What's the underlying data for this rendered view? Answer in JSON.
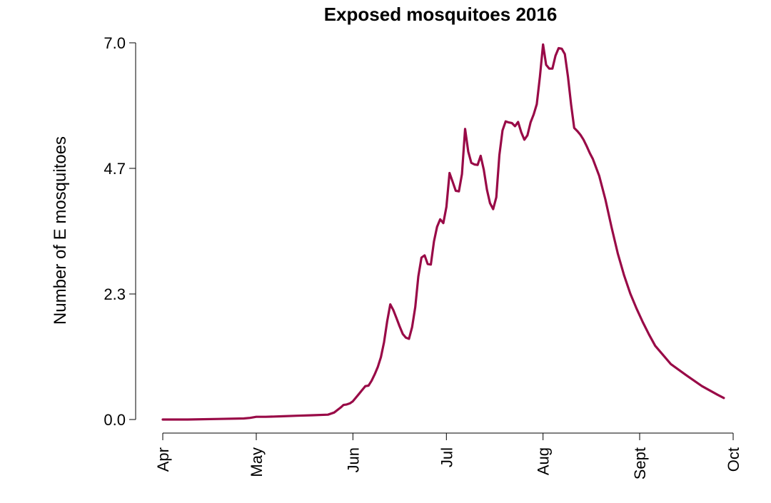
{
  "chart_data": {
    "type": "line",
    "title": "Exposed mosquitoes 2016",
    "xlabel": "",
    "ylabel": "Number of E mosquitoes",
    "x_unit": "day of year 2016",
    "xlim": [
      92,
      275
    ],
    "ylim": [
      0,
      7.0
    ],
    "yticks": [
      {
        "value": 0,
        "label": "0.0"
      },
      {
        "value": 2.333,
        "label": "2.3"
      },
      {
        "value": 4.667,
        "label": "4.7"
      },
      {
        "value": 7.0,
        "label": "7.0"
      }
    ],
    "xticks": [
      {
        "value": 92,
        "label": "Apr"
      },
      {
        "value": 122,
        "label": "May"
      },
      {
        "value": 153,
        "label": "Jun"
      },
      {
        "value": 183,
        "label": "Jul"
      },
      {
        "value": 214,
        "label": "Aug"
      },
      {
        "value": 245,
        "label": "Sept"
      },
      {
        "value": 275,
        "label": "Oct"
      }
    ],
    "grid": false,
    "series": [
      {
        "name": "Exposed mosquitoes",
        "color": "#990a47",
        "x": [
          92,
          100,
          110,
          118,
          120,
          122,
          125,
          130,
          135,
          140,
          145,
          147,
          149,
          150,
          151,
          152,
          153,
          154,
          155,
          156,
          157,
          158,
          159,
          160,
          161,
          162,
          163,
          164,
          165,
          166,
          167,
          168,
          169,
          170,
          171,
          172,
          173,
          174,
          175,
          176,
          177,
          178,
          179,
          180,
          181,
          182,
          183,
          184,
          185,
          186,
          187,
          188,
          189,
          190,
          191,
          192,
          193,
          194,
          195,
          196,
          197,
          198,
          199,
          200,
          201,
          202,
          203,
          204,
          205,
          206,
          207,
          208,
          209,
          210,
          211,
          212,
          213,
          214,
          215,
          216,
          217,
          218,
          219,
          220,
          221,
          222,
          223,
          224,
          225,
          226,
          227,
          228,
          229,
          230,
          232,
          234,
          236,
          238,
          240,
          242,
          244,
          246,
          248,
          250,
          255,
          260,
          265,
          270,
          272
        ],
        "values": [
          0.0,
          0.0,
          0.01,
          0.02,
          0.03,
          0.05,
          0.05,
          0.06,
          0.07,
          0.08,
          0.09,
          0.13,
          0.22,
          0.27,
          0.28,
          0.3,
          0.34,
          0.41,
          0.48,
          0.55,
          0.62,
          0.63,
          0.72,
          0.84,
          0.98,
          1.16,
          1.44,
          1.83,
          2.14,
          2.03,
          1.88,
          1.73,
          1.59,
          1.52,
          1.5,
          1.72,
          2.09,
          2.66,
          3.01,
          3.05,
          2.89,
          2.88,
          3.31,
          3.58,
          3.72,
          3.65,
          3.95,
          4.58,
          4.42,
          4.25,
          4.24,
          4.56,
          5.4,
          4.98,
          4.77,
          4.74,
          4.73,
          4.9,
          4.64,
          4.27,
          4.02,
          3.91,
          4.13,
          4.91,
          5.37,
          5.54,
          5.52,
          5.51,
          5.45,
          5.53,
          5.34,
          5.2,
          5.28,
          5.52,
          5.67,
          5.86,
          6.37,
          6.97,
          6.59,
          6.52,
          6.52,
          6.76,
          6.9,
          6.89,
          6.79,
          6.37,
          5.85,
          5.42,
          5.36,
          5.29,
          5.2,
          5.08,
          4.95,
          4.84,
          4.53,
          4.09,
          3.57,
          3.08,
          2.68,
          2.34,
          2.06,
          1.81,
          1.58,
          1.37,
          1.03,
          0.82,
          0.62,
          0.46,
          0.4
        ]
      }
    ]
  }
}
